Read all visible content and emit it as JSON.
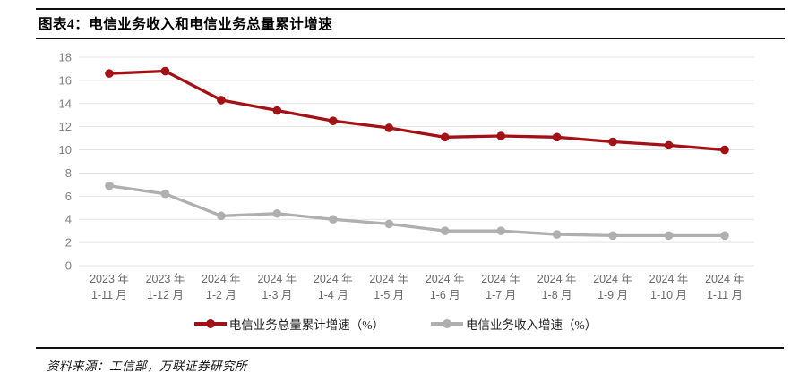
{
  "header": {
    "title": "图表4：电信业务收入和电信业务总量累计增速"
  },
  "footer": {
    "source": "资料来源：工信部，万联证券研究所"
  },
  "chart_data": {
    "type": "line",
    "title": "电信业务收入和电信业务总量累计增速",
    "categories": [
      [
        "2023 年",
        "1-11 月"
      ],
      [
        "2023 年",
        "1-12 月"
      ],
      [
        "2024 年",
        "1-2 月"
      ],
      [
        "2024 年",
        "1-3 月"
      ],
      [
        "2024 年",
        "1-4 月"
      ],
      [
        "2024 年",
        "1-5 月"
      ],
      [
        "2024 年",
        "1-6 月"
      ],
      [
        "2024 年",
        "1-7 月"
      ],
      [
        "2024 年",
        "1-8 月"
      ],
      [
        "2024 年",
        "1-9 月"
      ],
      [
        "2024 年",
        "1-10 月"
      ],
      [
        "2024 年",
        "1-11 月"
      ]
    ],
    "series": [
      {
        "name": "电信业务总量累计增速（%）",
        "color": "#A21115",
        "values": [
          16.6,
          16.8,
          14.3,
          13.4,
          12.5,
          11.9,
          11.1,
          11.2,
          11.1,
          10.7,
          10.4,
          10.0
        ]
      },
      {
        "name": "电信业务收入增速（%）",
        "color": "#AFAFAF",
        "values": [
          6.9,
          6.2,
          4.3,
          4.5,
          4.0,
          3.6,
          3.0,
          3.0,
          2.7,
          2.6,
          2.6,
          2.6
        ]
      }
    ],
    "ylim": [
      0,
      18
    ],
    "ytick_step": 2,
    "grid": true,
    "legend_position": "bottom",
    "xlabel": "",
    "ylabel": "",
    "axis_colors": {
      "y_label": "#7F7F7F",
      "x_label": "#6A6A6A",
      "gridline": "#E3E3E3"
    }
  }
}
